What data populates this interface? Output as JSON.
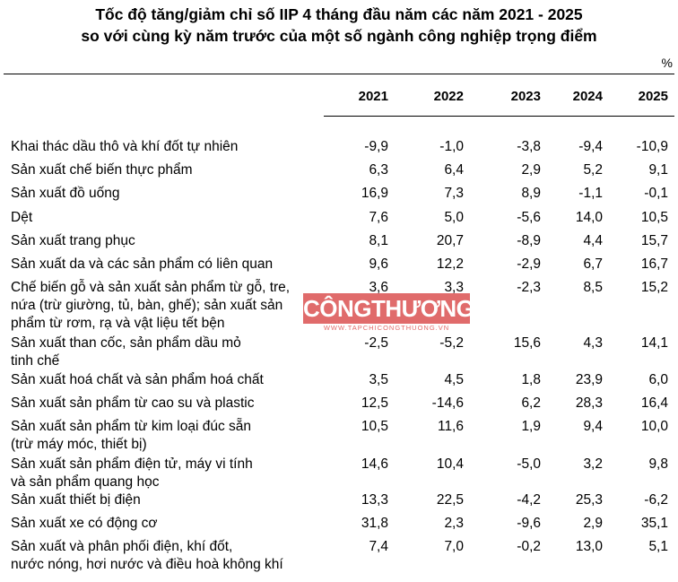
{
  "title_line1": "Tốc độ tăng/giảm chỉ số IIP 4 tháng đầu năm các năm 2021 - 2025",
  "title_line2": "so với cùng kỳ năm trước của một số ngành công nghiệp trọng điểm",
  "unit": "%",
  "watermark": {
    "main": "CÔNGTHƯƠNG",
    "sub": "WWW.TAPCHICONGTHUONG.VN"
  },
  "chart_data": {
    "type": "table",
    "columns": [
      "2021",
      "2022",
      "2023",
      "2024",
      "2025"
    ],
    "rows": [
      {
        "label": [
          "Khai thác dầu thô và khí đốt tự nhiên"
        ],
        "values": [
          "-9,9",
          "-1,0",
          "-3,8",
          "-9,4",
          "-10,9"
        ]
      },
      {
        "label": [
          "Sản xuất chế biến thực phẩm"
        ],
        "values": [
          "6,3",
          "6,4",
          "2,9",
          "5,2",
          "9,1"
        ]
      },
      {
        "label": [
          "Sản xuất đồ uống"
        ],
        "values": [
          "16,9",
          "7,3",
          "8,9",
          "-1,1",
          "-0,1"
        ]
      },
      {
        "label": [
          "Dệt"
        ],
        "values": [
          "7,6",
          "5,0",
          "-5,6",
          "14,0",
          "10,5"
        ]
      },
      {
        "label": [
          "Sản xuất trang phục"
        ],
        "values": [
          "8,1",
          "20,7",
          "-8,9",
          "4,4",
          "15,7"
        ]
      },
      {
        "label": [
          "Sản xuất da và các sản phẩm có liên quan"
        ],
        "values": [
          "9,6",
          "12,2",
          "-2,9",
          "6,7",
          "16,7"
        ]
      },
      {
        "label": [
          "Chế biến gỗ và sản xuất sản phẩm từ gỗ, tre,",
          "nứa (trừ giường, tủ, bàn, ghế); sản xuất sản",
          "phẩm từ rơm, rạ và vật liệu tết bện"
        ],
        "values": [
          "3,6",
          "3,3",
          "-2,3",
          "8,5",
          "15,2"
        ]
      },
      {
        "label": [
          "Sản xuất than cốc, sản phẩm dầu mỏ",
          "tinh chế"
        ],
        "values": [
          "-2,5",
          "-5,2",
          "15,6",
          "4,3",
          "14,1"
        ]
      },
      {
        "label": [
          "Sản xuất hoá chất và sản phẩm hoá chất"
        ],
        "values": [
          "3,5",
          "4,5",
          "1,8",
          "23,9",
          "6,0"
        ]
      },
      {
        "label": [
          "Sản xuất sản phẩm từ cao su và plastic"
        ],
        "values": [
          "12,5",
          "-14,6",
          "6,2",
          "28,3",
          "16,4"
        ]
      },
      {
        "label": [
          "Sản xuất sản phẩm từ kim loại đúc sẵn",
          "(trừ máy móc, thiết bị)"
        ],
        "values": [
          "10,5",
          "11,6",
          "1,9",
          "9,4",
          "10,0"
        ]
      },
      {
        "label": [
          "Sản xuất sản phẩm điện tử, máy vi tính",
          "và sản phẩm quang học"
        ],
        "values": [
          "14,6",
          "10,4",
          "-5,0",
          "3,2",
          "9,8"
        ]
      },
      {
        "label": [
          "Sản xuất thiết bị điện"
        ],
        "values": [
          "13,3",
          "22,5",
          "-4,2",
          "25,3",
          "-6,2"
        ]
      },
      {
        "label": [
          "Sản xuất xe có động cơ"
        ],
        "values": [
          "31,8",
          "2,3",
          "-9,6",
          "2,9",
          "35,1"
        ]
      },
      {
        "label": [
          "Sản xuất và phân phối điện, khí đốt,",
          "nước nóng, hơi nước và điều hoà không khí"
        ],
        "values": [
          "7,4",
          "7,0",
          "-0,2",
          "13,0",
          "5,1"
        ]
      }
    ]
  }
}
